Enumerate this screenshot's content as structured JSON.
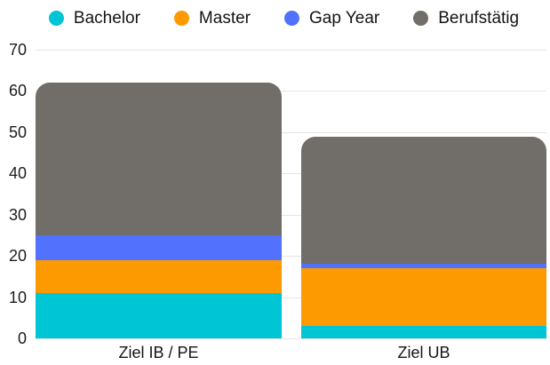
{
  "chart_data": {
    "type": "bar",
    "stacked": true,
    "title": "",
    "xlabel": "",
    "ylabel": "",
    "categories": [
      "Ziel IB / PE",
      "Ziel UB"
    ],
    "series": [
      {
        "name": "Bachelor",
        "color": "#00C5D4",
        "values": [
          11,
          3
        ]
      },
      {
        "name": "Master",
        "color": "#FD9A02",
        "values": [
          8,
          14
        ]
      },
      {
        "name": "Gap Year",
        "color": "#5271FC",
        "values": [
          6,
          1
        ]
      },
      {
        "name": "Berufstätig",
        "color": "#716D68",
        "values": [
          37,
          31
        ]
      }
    ],
    "stack_totals": [
      62,
      49
    ],
    "ylim": [
      0,
      70
    ],
    "yticks": [
      0,
      10,
      20,
      30,
      40,
      50,
      60,
      70
    ],
    "grid": true,
    "legend_position": "top",
    "colors": {
      "grid": "#E6E4E2",
      "text": "#141414",
      "background": "#FFFFFF"
    }
  }
}
